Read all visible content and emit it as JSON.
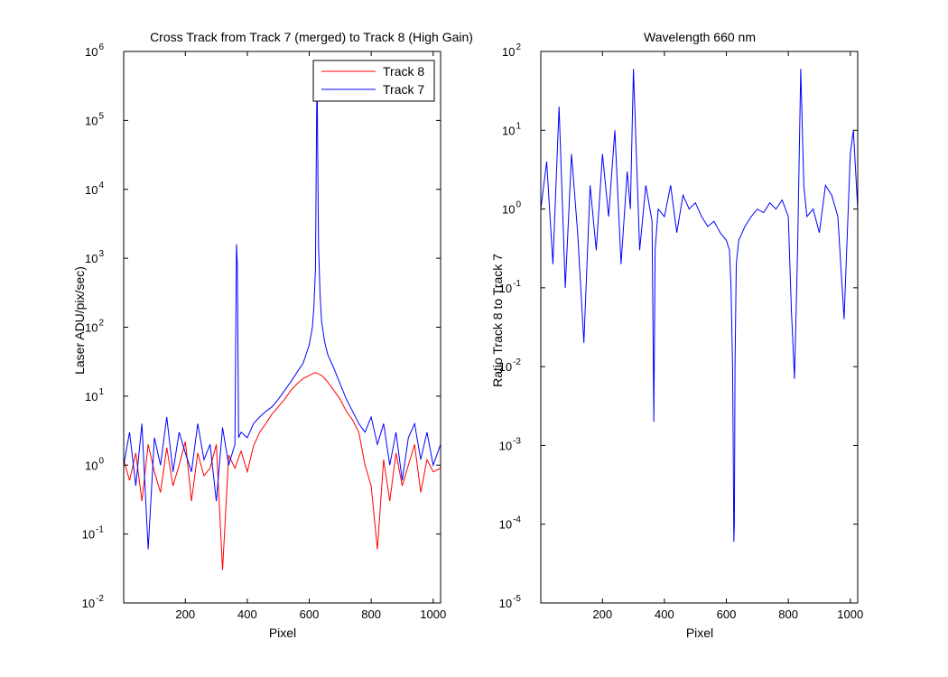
{
  "chart_data": [
    {
      "type": "line",
      "title": "Cross Track from Track 7 (merged) to Track 8 (High Gain)",
      "xlabel": "Pixel",
      "ylabel": "Laser ADU/pix/sec)",
      "xlim": [
        1,
        1024
      ],
      "ylim": [
        0.01,
        1000000
      ],
      "yscale": "log",
      "x_ticks": [
        200,
        400,
        600,
        800,
        1000
      ],
      "y_tick_exponents": [
        -2,
        -1,
        0,
        1,
        2,
        3,
        4,
        5,
        6
      ],
      "grid": false,
      "legend": "top-right",
      "series": [
        {
          "name": "Track 8",
          "color": "#ff0000",
          "x": [
            1,
            20,
            40,
            60,
            80,
            100,
            120,
            140,
            160,
            180,
            200,
            220,
            240,
            260,
            280,
            300,
            320,
            340,
            360,
            380,
            400,
            420,
            440,
            460,
            480,
            500,
            520,
            540,
            560,
            580,
            600,
            610,
            620,
            630,
            640,
            650,
            660,
            680,
            700,
            720,
            740,
            760,
            780,
            800,
            820,
            840,
            860,
            880,
            900,
            920,
            940,
            960,
            980,
            1000,
            1024
          ],
          "y": [
            1.2,
            0.6,
            1.5,
            0.3,
            2.0,
            0.8,
            0.4,
            1.8,
            0.5,
            1.0,
            2.2,
            0.3,
            1.5,
            0.7,
            0.9,
            2.0,
            0.03,
            1.4,
            0.9,
            1.6,
            0.8,
            1.9,
            3.0,
            4.0,
            5.5,
            7.0,
            9.0,
            12.0,
            15.0,
            18.0,
            20.0,
            21.0,
            22.0,
            21.0,
            20.0,
            18.0,
            16.0,
            12.0,
            9.0,
            6.0,
            4.5,
            3.0,
            1.0,
            0.5,
            0.06,
            1.2,
            0.3,
            1.5,
            0.5,
            1.0,
            2.0,
            0.4,
            1.2,
            0.8,
            0.9
          ]
        },
        {
          "name": "Track 7",
          "color": "#0000ff",
          "x": [
            1,
            20,
            40,
            60,
            80,
            100,
            120,
            140,
            160,
            180,
            200,
            220,
            240,
            260,
            280,
            300,
            320,
            340,
            360,
            365,
            368,
            372,
            380,
            400,
            420,
            440,
            460,
            480,
            500,
            520,
            540,
            560,
            580,
            600,
            610,
            615,
            620,
            624,
            626,
            630,
            635,
            640,
            650,
            660,
            680,
            700,
            720,
            740,
            760,
            780,
            800,
            820,
            840,
            860,
            880,
            900,
            920,
            940,
            960,
            980,
            1000,
            1024
          ],
          "y": [
            1.0,
            3.0,
            0.5,
            4.0,
            0.06,
            2.5,
            1.0,
            5.0,
            0.8,
            3.0,
            1.5,
            0.8,
            4.0,
            1.2,
            2.0,
            0.3,
            3.5,
            1.0,
            2.0,
            1600,
            800,
            2.5,
            3.0,
            2.5,
            4.0,
            5.0,
            6.0,
            7.0,
            9.0,
            12.0,
            16.0,
            22.0,
            30.0,
            55.0,
            100.0,
            200.0,
            700.0,
            180000,
            200000,
            1500,
            300.0,
            120.0,
            60.0,
            40.0,
            25.0,
            15.0,
            9.0,
            6.0,
            4.0,
            3.0,
            5.0,
            2.0,
            4.0,
            1.0,
            3.0,
            0.6,
            2.5,
            4.0,
            1.2,
            3.0,
            1.0,
            2.0
          ]
        }
      ]
    },
    {
      "type": "line",
      "title": "Wavelength 660 nm",
      "xlabel": "Pixel",
      "ylabel": "Ratio Track 8 to Track 7",
      "xlim": [
        1,
        1024
      ],
      "ylim": [
        1e-05,
        100
      ],
      "yscale": "log",
      "x_ticks": [
        200,
        400,
        600,
        800,
        1000
      ],
      "y_tick_exponents": [
        -5,
        -4,
        -3,
        -2,
        -1,
        0,
        1,
        2
      ],
      "grid": false,
      "series": [
        {
          "color": "#0000ff",
          "x": [
            1,
            20,
            40,
            60,
            80,
            100,
            120,
            140,
            160,
            180,
            200,
            220,
            240,
            260,
            280,
            290,
            300,
            320,
            340,
            360,
            366,
            370,
            380,
            400,
            420,
            440,
            460,
            480,
            500,
            520,
            540,
            560,
            580,
            600,
            610,
            615,
            620,
            622,
            624,
            626,
            628,
            632,
            640,
            660,
            680,
            700,
            720,
            740,
            760,
            780,
            800,
            810,
            820,
            830,
            840,
            850,
            860,
            880,
            900,
            920,
            940,
            960,
            980,
            1000,
            1010,
            1024
          ],
          "y": [
            1.0,
            4.0,
            0.2,
            20.0,
            0.1,
            5.0,
            0.5,
            0.02,
            2.0,
            0.3,
            5.0,
            0.8,
            10.0,
            0.2,
            3.0,
            1.0,
            60.0,
            0.3,
            2.0,
            0.7,
            0.002,
            0.3,
            1.0,
            0.8,
            2.0,
            0.5,
            1.5,
            1.0,
            1.2,
            0.8,
            0.6,
            0.7,
            0.5,
            0.4,
            0.3,
            0.1,
            0.01,
            0.001,
            6e-05,
            0.0001,
            0.01,
            0.2,
            0.4,
            0.6,
            0.8,
            1.0,
            0.9,
            1.2,
            1.0,
            1.3,
            0.8,
            0.05,
            0.007,
            0.3,
            60.0,
            2.0,
            0.8,
            1.0,
            0.5,
            2.0,
            1.5,
            0.8,
            0.04,
            5.0,
            10.0,
            1.0
          ]
        }
      ]
    }
  ]
}
